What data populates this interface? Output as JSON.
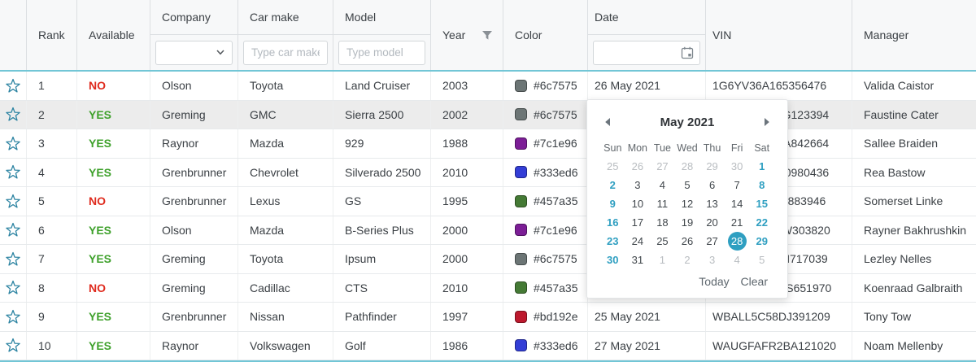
{
  "header": {
    "columns": {
      "rank": "Rank",
      "available": "Available",
      "company": "Company",
      "car_make": "Car make",
      "model": "Model",
      "year": "Year",
      "color": "Color",
      "date": "Date",
      "vin": "VIN",
      "manager": "Manager"
    },
    "filters": {
      "company_selected": "",
      "car_make_placeholder": "Type car make",
      "model_placeholder": "Type model",
      "date_value": ""
    }
  },
  "table": {
    "rows": [
      {
        "rank": "1",
        "available": "NO",
        "company": "Olson",
        "car_make": "Toyota",
        "model": "Land Cruiser",
        "year": "2003",
        "color_hex": "#6c7575",
        "date": "26 May 2021",
        "vin": "1G6YV36A165356476",
        "manager": "Valida Caistor",
        "highlighted": false
      },
      {
        "rank": "2",
        "available": "YES",
        "company": "Greming",
        "car_make": "GMC",
        "model": "Sierra 2500",
        "year": "2002",
        "color_hex": "#6c7575",
        "date": "",
        "vin": "1GTHK23688G123394",
        "manager": "Faustine Cater",
        "highlighted": true
      },
      {
        "rank": "3",
        "available": "YES",
        "company": "Raynor",
        "car_make": "Mazda",
        "model": "929",
        "year": "1988",
        "color_hex": "#7c1e96",
        "date": "",
        "vin": "JM1BG2242XA842664",
        "manager": "Sallee Braiden",
        "highlighted": false
      },
      {
        "rank": "4",
        "available": "YES",
        "company": "Grenbrunner",
        "car_make": "Chevrolet",
        "model": "Silverado 2500",
        "year": "2010",
        "color_hex": "#333ed6",
        "date": "",
        "vin": "3GCEK14T2Y0980436",
        "manager": "Rea Bastow",
        "highlighted": false
      },
      {
        "rank": "5",
        "available": "NO",
        "company": "Grenbrunner",
        "car_make": "Lexus",
        "model": "GS",
        "year": "1995",
        "color_hex": "#457a35",
        "date": "",
        "vin": "JT8BH28F1XT883946",
        "manager": "Somerset Linke",
        "highlighted": false
      },
      {
        "rank": "6",
        "available": "YES",
        "company": "Olson",
        "car_make": "Mazda",
        "model": "B-Series Plus",
        "year": "2000",
        "color_hex": "#7c1e96",
        "date": "",
        "vin": "JN8AR05Y20W303820",
        "manager": "Rayner Bakhrushkin",
        "highlighted": false
      },
      {
        "rank": "7",
        "available": "YES",
        "company": "Greming",
        "car_make": "Toyota",
        "model": "Ipsum",
        "year": "2000",
        "color_hex": "#6c7575",
        "date": "",
        "vin": "4T1BE32K5SN717039",
        "manager": "Lezley Nelles",
        "highlighted": false
      },
      {
        "rank": "8",
        "available": "NO",
        "company": "Greming",
        "car_make": "Cadillac",
        "model": "CTS",
        "year": "2010",
        "color_hex": "#457a35",
        "date": "",
        "vin": "WBANE53577S651970",
        "manager": "Koenraad Galbraith",
        "highlighted": false
      },
      {
        "rank": "9",
        "available": "YES",
        "company": "Grenbrunner",
        "car_make": "Nissan",
        "model": "Pathfinder",
        "year": "1997",
        "color_hex": "#bd192e",
        "date": "25 May 2021",
        "vin": "WBALL5C58DJ391209",
        "manager": "Tony Tow",
        "highlighted": false
      },
      {
        "rank": "10",
        "available": "YES",
        "company": "Raynor",
        "car_make": "Volkswagen",
        "model": "Golf",
        "year": "1986",
        "color_hex": "#333ed6",
        "date": "27 May 2021",
        "vin": "WAUGFAFR2BA121020",
        "manager": "Noam Mellenby",
        "highlighted": false
      }
    ]
  },
  "calendar": {
    "title": "May 2021",
    "day_names": [
      "Sun",
      "Mon",
      "Tue",
      "Wed",
      "Thu",
      "Fri",
      "Sat"
    ],
    "weeks": [
      [
        {
          "d": "25",
          "m": true
        },
        {
          "d": "26",
          "m": true
        },
        {
          "d": "27",
          "m": true
        },
        {
          "d": "28",
          "m": true
        },
        {
          "d": "29",
          "m": true
        },
        {
          "d": "30",
          "m": true
        },
        {
          "d": "1"
        }
      ],
      [
        {
          "d": "2"
        },
        {
          "d": "3"
        },
        {
          "d": "4"
        },
        {
          "d": "5"
        },
        {
          "d": "6"
        },
        {
          "d": "7"
        },
        {
          "d": "8"
        }
      ],
      [
        {
          "d": "9"
        },
        {
          "d": "10"
        },
        {
          "d": "11"
        },
        {
          "d": "12"
        },
        {
          "d": "13"
        },
        {
          "d": "14"
        },
        {
          "d": "15"
        }
      ],
      [
        {
          "d": "16"
        },
        {
          "d": "17"
        },
        {
          "d": "18"
        },
        {
          "d": "19"
        },
        {
          "d": "20"
        },
        {
          "d": "21"
        },
        {
          "d": "22"
        }
      ],
      [
        {
          "d": "23"
        },
        {
          "d": "24"
        },
        {
          "d": "25"
        },
        {
          "d": "26"
        },
        {
          "d": "27"
        },
        {
          "d": "28",
          "s": true
        },
        {
          "d": "29"
        }
      ],
      [
        {
          "d": "30"
        },
        {
          "d": "31"
        },
        {
          "d": "1",
          "m": true
        },
        {
          "d": "2",
          "m": true
        },
        {
          "d": "3",
          "m": true
        },
        {
          "d": "4",
          "m": true
        },
        {
          "d": "5",
          "m": true
        }
      ]
    ],
    "selected_day": "28",
    "today_label": "Today",
    "clear_label": "Clear"
  },
  "colors": {
    "accent_teal": "#2f9fc1",
    "header_underline": "#72c6d6",
    "available_yes": "#3fa12c",
    "available_no": "#df2b1e",
    "star_outline": "#2f85a3"
  }
}
